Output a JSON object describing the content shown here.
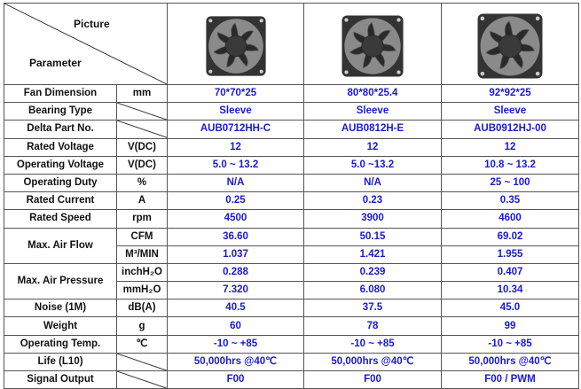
{
  "header": {
    "picture_label": "Picture",
    "parameter_label": "Parameter"
  },
  "fans": [
    {
      "icon": "fan-70mm-image"
    },
    {
      "icon": "fan-80mm-image"
    },
    {
      "icon": "fan-92mm-image"
    }
  ],
  "rows": [
    {
      "param": "Fan Dimension",
      "unit": "mm",
      "values": [
        "70*70*25",
        "80*80*25.4",
        "92*92*25"
      ]
    },
    {
      "param": "Bearing Type",
      "unit": "",
      "values": [
        "Sleeve",
        "Sleeve",
        "Sleeve"
      ]
    },
    {
      "param": "Delta Part No.",
      "unit": "",
      "values": [
        "AUB0712HH-C",
        "AUB0812H-E",
        "AUB0912HJ-00"
      ]
    },
    {
      "param": "Rated Voltage",
      "unit": "V(DC)",
      "values": [
        "12",
        "12",
        "12"
      ]
    },
    {
      "param": "Operating Voltage",
      "unit": "V(DC)",
      "values": [
        "5.0 ~ 13.2",
        "5.0 ~13.2",
        "10.8 ~ 13.2"
      ]
    },
    {
      "param": "Operating Duty",
      "unit": "%",
      "values": [
        "N/A",
        "N/A",
        "25 ~ 100"
      ]
    },
    {
      "param": "Rated Current",
      "unit": "A",
      "values": [
        "0.25",
        "0.23",
        "0.35"
      ]
    },
    {
      "param": "Rated Speed",
      "unit": "rpm",
      "values": [
        "4500",
        "3900",
        "4600"
      ]
    },
    {
      "param": "Max. Air Flow",
      "unit": "CFM",
      "values": [
        "36.60",
        "50.15",
        "69.02"
      ]
    },
    {
      "param": "",
      "unit": "M³/MIN",
      "values": [
        "1.037",
        "1.421",
        "1.955"
      ]
    },
    {
      "param": "Max. Air Pressure",
      "unit": "inchH₂O",
      "values": [
        "0.288",
        "0.239",
        "0.407"
      ]
    },
    {
      "param": "",
      "unit": "mmH₂O",
      "values": [
        "7.320",
        "6.080",
        "10.34"
      ]
    },
    {
      "param": "Noise (1M)",
      "unit": "dB(A)",
      "values": [
        "40.5",
        "37.5",
        "45.0"
      ]
    },
    {
      "param": "Weight",
      "unit": "g",
      "values": [
        "60",
        "78",
        "99"
      ]
    },
    {
      "param": "Operating Temp.",
      "unit": "℃",
      "values": [
        "-10 ~ +85",
        "-10 ~ +85",
        "-10 ~ +85"
      ]
    },
    {
      "param": "Life (L10)",
      "unit": "",
      "values": [
        "50,000hrs @40℃",
        "50,000hrs @40℃",
        "50,000hrs @40℃"
      ]
    },
    {
      "param": "Signal Output",
      "unit": "",
      "values": [
        "F00",
        "F00",
        "F00 / PWM"
      ]
    }
  ]
}
